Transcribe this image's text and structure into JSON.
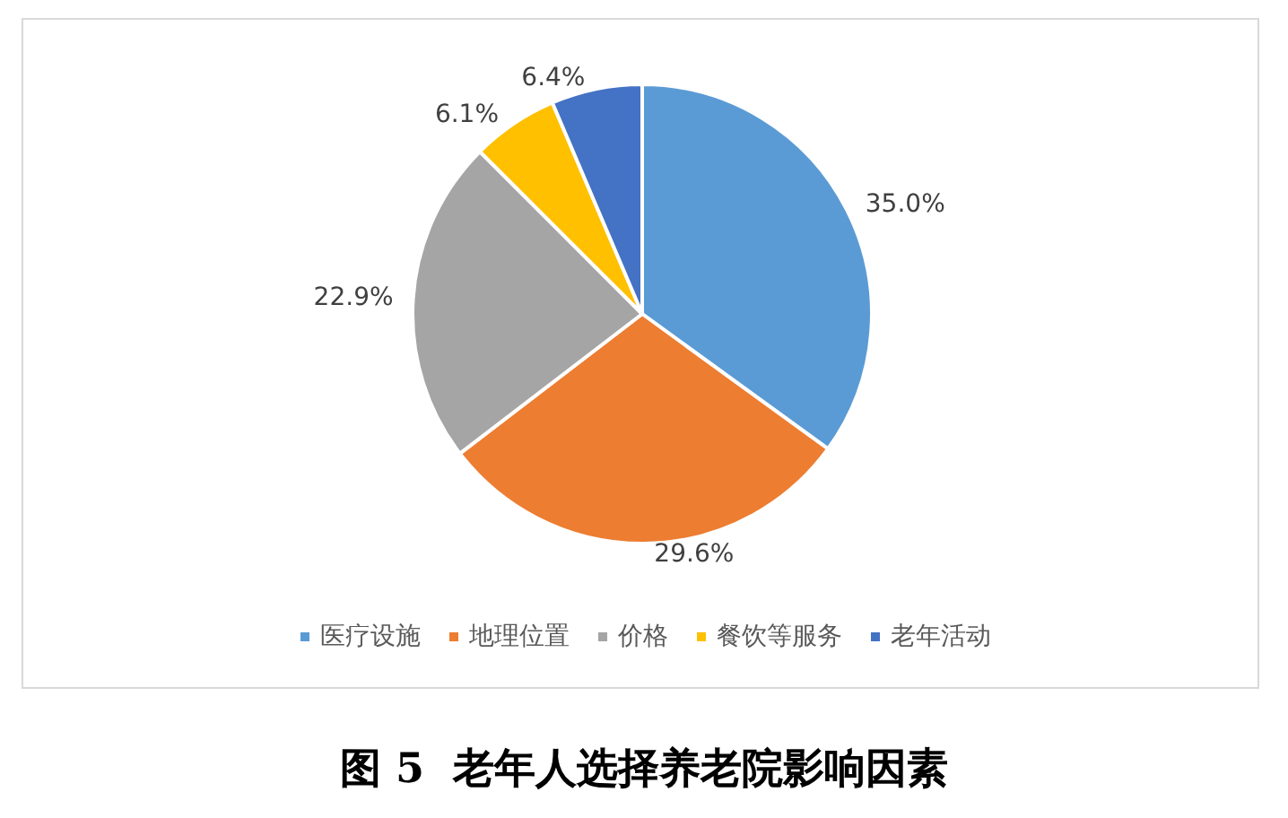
{
  "chart_data": {
    "type": "pie",
    "title": "图 5  老年人选择养老院影响因素",
    "categories": [
      "医疗设施",
      "地理位置",
      "价格",
      "餐饮等服务",
      "老年活动"
    ],
    "values": [
      35.0,
      29.6,
      22.9,
      6.1,
      6.4
    ],
    "value_labels": [
      "35.0%",
      "29.6%",
      "22.9%",
      "6.1%",
      "6.4%"
    ],
    "colors": [
      "#5b9bd5",
      "#ed7d31",
      "#a5a5a5",
      "#ffc000",
      "#4472c4"
    ],
    "legend": "bottom"
  }
}
